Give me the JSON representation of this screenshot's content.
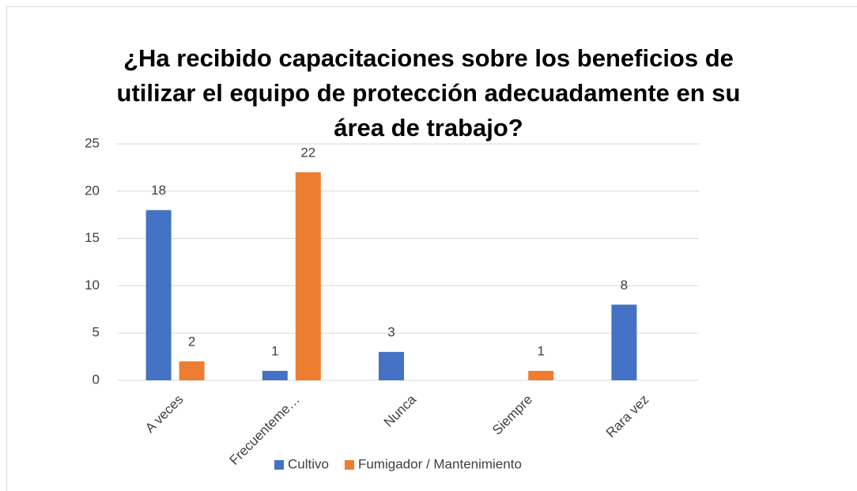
{
  "chart_data": {
    "type": "bar",
    "title": "¿Ha recibido capacitaciones sobre los beneficios de utilizar el equipo de protección adecuadamente en su área de trabajo?",
    "categories": [
      "A veces",
      "Frecuenteme…",
      "Nunca",
      "Siempre",
      "Rara vez"
    ],
    "series": [
      {
        "name": "Cultivo",
        "color": "#4472c4",
        "values": [
          18,
          1,
          3,
          null,
          8
        ]
      },
      {
        "name": "Fumigador / Mantenimiento",
        "color": "#ed7d31",
        "values": [
          2,
          22,
          null,
          1,
          null
        ]
      }
    ],
    "ylim": [
      0,
      25
    ],
    "yticks": [
      0,
      5,
      10,
      15,
      20,
      25
    ],
    "grid": true,
    "legend": "bottom"
  }
}
